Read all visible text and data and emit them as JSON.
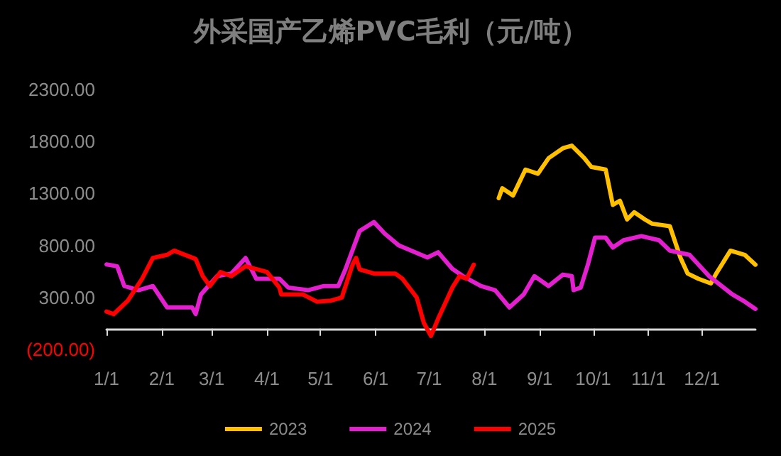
{
  "chart_data": {
    "type": "line",
    "title": "外采国产乙烯PVC毛利（元/吨）",
    "xlim": [
      "--01-01",
      "--12-31"
    ],
    "xticks": [
      {
        "value": "--01-01",
        "label": "1/1"
      },
      {
        "value": "--02-01",
        "label": "2/1"
      },
      {
        "value": "--03-01",
        "label": "3/1"
      },
      {
        "value": "--04-01",
        "label": "4/1"
      },
      {
        "value": "--05-01",
        "label": "5/1"
      },
      {
        "value": "--06-01",
        "label": "6/1"
      },
      {
        "value": "--07-01",
        "label": "7/1"
      },
      {
        "value": "--08-01",
        "label": "8/1"
      },
      {
        "value": "--09-01",
        "label": "9/1"
      },
      {
        "value": "--10-01",
        "label": "10/1"
      },
      {
        "value": "--11-01",
        "label": "11/1"
      },
      {
        "value": "--12-01",
        "label": "12/1"
      }
    ],
    "ylim": [
      -200,
      2300
    ],
    "yticks": [
      {
        "value": -200,
        "label": "(200.00)"
      },
      {
        "value": 300,
        "label": "300.00"
      },
      {
        "value": 800,
        "label": "800.00"
      },
      {
        "value": 1300,
        "label": "1300.00"
      },
      {
        "value": 1800,
        "label": "1800.00"
      },
      {
        "value": 2300,
        "label": "2300.00"
      }
    ],
    "grid": false,
    "legend": "bottom",
    "marker": "none",
    "line_style": "solid",
    "series": [
      {
        "name": "2023",
        "color": "#ffc000",
        "x": [
          "--08-09",
          "--08-11",
          "--08-17",
          "--08-24",
          "--08-31",
          "--09-06",
          "--09-14",
          "--09-19",
          "--09-26",
          "--09-30",
          "--10-08",
          "--10-12",
          "--10-16",
          "--10-20",
          "--10-24",
          "--10-30",
          "--11-03",
          "--11-13",
          "--11-19",
          "--11-23",
          "--11-29",
          "--12-06",
          "--12-09",
          "--12-17",
          "--12-25",
          "--12-31"
        ],
        "values": [
          1255,
          1350,
          1280,
          1530,
          1490,
          1640,
          1735,
          1760,
          1640,
          1555,
          1530,
          1190,
          1230,
          1050,
          1120,
          1050,
          1010,
          985,
          680,
          530,
          480,
          435,
          530,
          750,
          710,
          615
        ]
      },
      {
        "name": "2024",
        "color": "#e41fd0",
        "x": [
          "--01-01",
          "--01-07",
          "--01-11",
          "--01-19",
          "--01-27",
          "--02-04",
          "--02-18",
          "--02-20",
          "--02-23",
          "--03-04",
          "--03-12",
          "--03-20",
          "--03-26",
          "--04-08",
          "--04-13",
          "--04-24",
          "--05-03",
          "--05-11",
          "--05-15",
          "--05-23",
          "--05-31",
          "--06-06",
          "--06-14",
          "--06-30",
          "--07-06",
          "--07-14",
          "--07-20",
          "--07-30",
          "--08-07",
          "--08-15",
          "--08-23",
          "--08-29",
          "--09-06",
          "--09-14",
          "--09-19",
          "--09-20",
          "--09-24",
          "--09-28",
          "--10-02",
          "--10-08",
          "--10-12",
          "--10-18",
          "--10-28",
          "--11-07",
          "--11-13",
          "--11-24",
          "--12-05",
          "--12-18",
          "--12-25",
          "--12-31"
        ],
        "values": [
          618,
          600,
          410,
          370,
          410,
          205,
          205,
          140,
          330,
          505,
          530,
          680,
          480,
          480,
          395,
          370,
          410,
          410,
          570,
          940,
          1025,
          915,
          800,
          685,
          735,
          575,
          505,
          410,
          370,
          205,
          330,
          505,
          410,
          520,
          505,
          370,
          395,
          615,
          875,
          875,
          780,
          850,
          890,
          850,
          750,
          710,
          505,
          330,
          260,
          190
        ]
      },
      {
        "name": "2025",
        "color": "#ff0000",
        "x": [
          "--01-01",
          "--01-05",
          "--01-13",
          "--01-21",
          "--01-27",
          "--02-04",
          "--02-08",
          "--02-20",
          "--02-24",
          "--02-28",
          "--03-06",
          "--03-12",
          "--03-20",
          "--04-01",
          "--04-08",
          "--04-09",
          "--04-21",
          "--04-29",
          "--05-07",
          "--05-13",
          "--05-19",
          "--05-21",
          "--05-23",
          "--05-31",
          "--06-12",
          "--06-16",
          "--06-24",
          "--06-28",
          "--07-02",
          "--07-06",
          "--07-14",
          "--07-18",
          "--07-22",
          "--07-26"
        ],
        "values": [
          165,
          140,
          270,
          480,
          680,
          710,
          750,
          670,
          505,
          410,
          545,
          505,
          600,
          545,
          395,
          330,
          330,
          260,
          270,
          300,
          615,
          680,
          570,
          530,
          530,
          480,
          300,
          55,
          -70,
          95,
          395,
          505,
          480,
          615
        ]
      }
    ]
  }
}
